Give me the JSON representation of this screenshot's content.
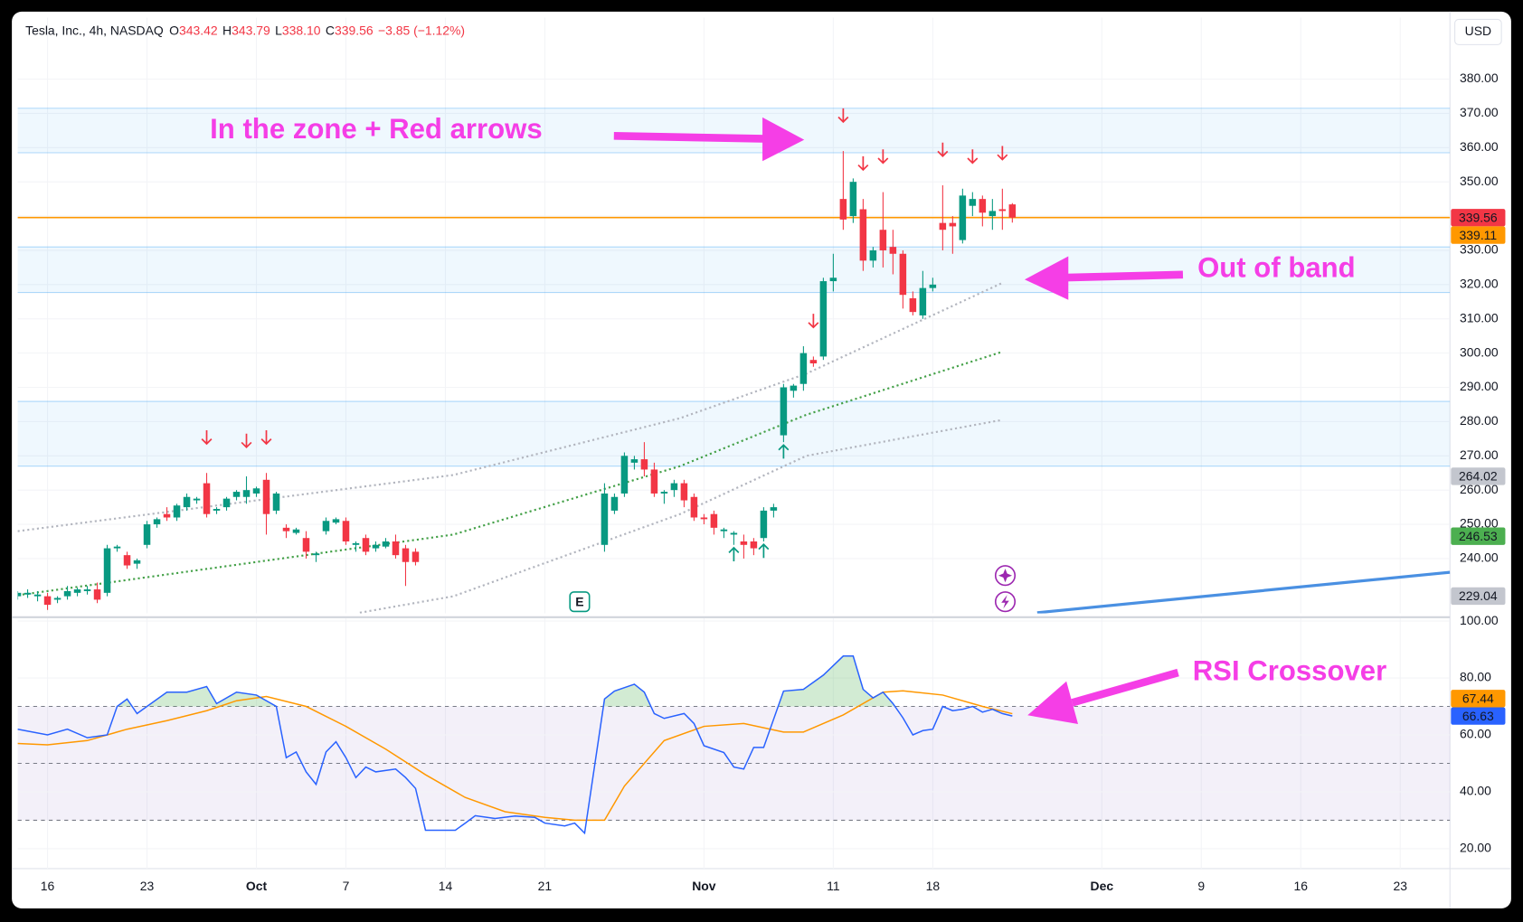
{
  "chart_data": {
    "type": "candlestick",
    "title": "Tesla, Inc., 4h, NASDAQ",
    "ohlc": [
      {
        "label": "O",
        "value": "343.42"
      },
      {
        "label": "H",
        "value": "343.79"
      },
      {
        "label": "L",
        "value": "338.10"
      },
      {
        "label": "C",
        "value": "339.56"
      }
    ],
    "change": "−3.85 (−1.12%)",
    "currency": "USD",
    "up_color": "#089981",
    "down_color": "#f23645",
    "x": [
      -3,
      -2,
      -1,
      0,
      1,
      2,
      3,
      4,
      5,
      6,
      7,
      8,
      9,
      10,
      11,
      12,
      13,
      14,
      15,
      16,
      17,
      18,
      19,
      20,
      21,
      22,
      23,
      24,
      25,
      26,
      27,
      28,
      29,
      30,
      31,
      32,
      33,
      34,
      35,
      36,
      37,
      56,
      57,
      58,
      59,
      60,
      61,
      62,
      63,
      64,
      65,
      66,
      67,
      68,
      69,
      70,
      71,
      72,
      73,
      74,
      75,
      76,
      77,
      78,
      79,
      80,
      81,
      82,
      83,
      84,
      85,
      86,
      87,
      88,
      89,
      90,
      91,
      92,
      93,
      94,
      95,
      96,
      97
    ],
    "open": [
      229,
      229.5,
      229,
      229,
      228,
      229,
      230,
      230.5,
      231,
      230,
      243,
      241,
      238.5,
      244,
      250,
      253,
      252,
      255,
      257,
      262,
      254,
      255,
      258,
      258,
      259,
      263,
      254,
      249,
      247.5,
      246,
      241,
      248,
      250.5,
      251,
      244,
      246,
      243,
      243.5,
      245,
      243,
      242,
      244,
      254,
      259,
      268,
      269,
      266,
      259,
      260,
      262,
      258,
      252,
      253,
      248,
      247,
      245,
      245,
      246,
      254,
      276,
      289,
      291,
      298,
      299,
      321,
      345,
      340,
      342,
      327,
      336,
      331,
      329,
      316,
      311,
      319,
      338,
      338,
      333,
      343,
      345,
      340,
      342,
      343.42
    ],
    "high": [
      230.5,
      231,
      230.5,
      230,
      229,
      232,
      231.5,
      232,
      233,
      244,
      244,
      242,
      240,
      251,
      252,
      255,
      256,
      259,
      258,
      265,
      255,
      258,
      260,
      264,
      261,
      265,
      259.5,
      250,
      249,
      248,
      242,
      252,
      252,
      252,
      245,
      247,
      245,
      246,
      247,
      244,
      243,
      262,
      259,
      271,
      270,
      274,
      268,
      260,
      263,
      263,
      259,
      253,
      254,
      249,
      248,
      247,
      246,
      255,
      256,
      291,
      291,
      302,
      299,
      322,
      329,
      359,
      351,
      345,
      331,
      347,
      336,
      330,
      318,
      324,
      322,
      349,
      340,
      348,
      347,
      346,
      345,
      348,
      343.79
    ],
    "low": [
      228,
      228.5,
      227.5,
      225,
      227,
      228,
      229,
      229.5,
      227,
      229,
      242,
      237,
      237,
      243,
      249,
      251,
      251,
      254,
      256,
      252,
      253,
      254,
      257,
      256,
      258,
      247,
      253,
      246,
      247,
      240,
      239,
      247,
      250,
      244,
      242,
      241,
      242,
      243,
      240,
      232,
      238,
      242,
      253,
      258,
      266,
      264,
      258,
      256,
      258,
      255,
      251,
      250,
      247,
      246,
      244,
      240,
      241,
      245,
      252,
      274,
      287,
      289,
      296,
      298,
      318,
      336,
      338,
      324,
      325,
      325,
      323,
      313,
      311,
      310,
      318,
      330,
      329,
      332,
      340,
      337,
      336,
      336,
      338.1
    ],
    "close": [
      230,
      230,
      229.5,
      226.5,
      228.5,
      230.5,
      231,
      231,
      228,
      243,
      243.5,
      238,
      239.5,
      250,
      251.5,
      252,
      255.5,
      258,
      257.5,
      253,
      254.5,
      257.5,
      259.5,
      260,
      260.5,
      253,
      259,
      248,
      248.5,
      242,
      241.5,
      251,
      251.5,
      245,
      244.5,
      242,
      244,
      245,
      241,
      239,
      239,
      259,
      258,
      270,
      269,
      266,
      259,
      259.5,
      262,
      257,
      252,
      251.5,
      249,
      248.5,
      247.5,
      244,
      243,
      254,
      255,
      290,
      290.5,
      300,
      297,
      321,
      322,
      339,
      350,
      327,
      330,
      330,
      329,
      317,
      312,
      319,
      320,
      336,
      337,
      346,
      345,
      341,
      341.5,
      341.5,
      339.56
    ],
    "xlim": [
      -3,
      141
    ],
    "xticks": [
      {
        "value": 0,
        "label": "16"
      },
      {
        "value": 10,
        "label": "23"
      },
      {
        "value": 21,
        "label": "Oct"
      },
      {
        "value": 30,
        "label": "7"
      },
      {
        "value": 40,
        "label": "14"
      },
      {
        "value": 50,
        "label": "21"
      },
      {
        "value": 66,
        "label": "Nov"
      },
      {
        "value": 79,
        "label": "11"
      },
      {
        "value": 89,
        "label": "18"
      },
      {
        "value": 106,
        "label": "Dec"
      },
      {
        "value": 116,
        "label": "9"
      },
      {
        "value": 126,
        "label": "16"
      },
      {
        "value": 136,
        "label": "23"
      }
    ],
    "ylim": [
      224,
      398
    ],
    "yticks": [
      {
        "value": 240,
        "label": "240.00"
      },
      {
        "value": 250,
        "label": "250.00"
      },
      {
        "value": 260,
        "label": "260.00"
      },
      {
        "value": 270,
        "label": "270.00"
      },
      {
        "value": 280,
        "label": "280.00"
      },
      {
        "value": 290,
        "label": "290.00"
      },
      {
        "value": 300,
        "label": "300.00"
      },
      {
        "value": 310,
        "label": "310.00"
      },
      {
        "value": 320,
        "label": "320.00"
      },
      {
        "value": 330,
        "label": "330.00"
      },
      {
        "value": 340,
        "label": "340.00"
      },
      {
        "value": 350,
        "label": "350.00"
      },
      {
        "value": 360,
        "label": "360.00"
      },
      {
        "value": 370,
        "label": "370.00"
      },
      {
        "value": 380,
        "label": "380.00"
      }
    ],
    "grid": true,
    "zones": [
      {
        "low": 358.5,
        "high": 371.5
      },
      {
        "low": 317.7,
        "high": 331
      },
      {
        "low": 267,
        "high": 285.9
      }
    ],
    "zone_color": "#2196f3",
    "overlays": [
      {
        "color": "#b2b5be",
        "style": "dotted",
        "x": [
          -3,
          40.8,
          63.6,
          76.3,
          96
        ],
        "values": [
          248,
          264.4,
          281,
          294,
          320.5
        ]
      },
      {
        "color": "#43a047",
        "style": "dotted",
        "x": [
          -3,
          40.8,
          63.6,
          76.3,
          96
        ],
        "values": [
          229.3,
          247,
          267,
          282,
          300.4
        ]
      },
      {
        "color": "#b2b5be",
        "style": "dotted",
        "x": [
          31.4,
          40.8,
          63.6,
          76.3,
          96
        ],
        "values": [
          224.2,
          229,
          253,
          270,
          280.5
        ]
      },
      {
        "color": "#4a90e2",
        "style": "solid",
        "x": [
          99.5,
          141
        ],
        "values": [
          224.2,
          236
        ]
      }
    ],
    "price_line": {
      "value": 339.56,
      "color": "#ff9800"
    },
    "price_labels": [
      {
        "value": 339.56,
        "label": "339.56",
        "color": "#f23645",
        "text_color": "#ffffff"
      },
      {
        "value": 339.11,
        "label": "339.11",
        "color": "#ff9800",
        "text_color": "#ffffff"
      },
      {
        "value": 264.02,
        "label": "264.02",
        "color": "#c3c6ce",
        "text_color": "#131722"
      },
      {
        "value": 246.53,
        "label": "246.53",
        "color": "#4caf50",
        "text_color": "#ffffff"
      },
      {
        "value": 229.04,
        "label": "229.04",
        "color": "#c3c6ce",
        "text_color": "#131722"
      }
    ],
    "sell_signals": [
      16,
      20,
      22,
      77,
      80,
      82,
      84,
      90,
      93,
      96
    ],
    "buy_signals": [
      69,
      72,
      74
    ],
    "earnings": {
      "x": 53.5,
      "label": "E"
    },
    "annotations": [
      "In the zone + Red arrows",
      "Out of band",
      "RSI Crossover"
    ],
    "rsi": {
      "ylim": [
        13,
        101
      ],
      "yticks": [
        {
          "value": 100,
          "label": "100.00"
        },
        {
          "value": 80,
          "label": "80.00"
        },
        {
          "value": 60,
          "label": "60.00"
        },
        {
          "value": 40,
          "label": "40.00"
        },
        {
          "value": 20,
          "label": "20.00"
        }
      ],
      "band": [
        30,
        70
      ],
      "levels": [
        30,
        50,
        70
      ],
      "series": [
        {
          "color": "#2962ff",
          "value_label": "66.63",
          "x": [
            -3,
            0,
            2,
            4,
            6,
            7,
            8,
            9,
            10,
            12,
            14,
            16,
            17,
            19,
            21,
            23,
            24,
            25,
            26,
            27,
            28,
            29,
            30,
            31,
            32,
            33,
            35,
            36,
            37,
            38,
            41,
            42,
            43,
            45,
            47,
            49,
            50,
            52,
            53,
            54,
            56,
            57,
            59,
            60,
            61,
            62,
            64,
            65,
            66,
            68,
            69,
            70,
            71,
            72,
            74,
            76,
            78,
            80,
            81,
            82,
            83,
            84,
            85,
            86,
            87,
            88,
            89,
            90,
            91,
            92,
            93,
            94,
            95,
            96,
            97
          ],
          "values": [
            62,
            60,
            62,
            59,
            60,
            70,
            72.6,
            67.5,
            70,
            75,
            75,
            77,
            71,
            75,
            74,
            70,
            52,
            54,
            47,
            42.6,
            54,
            57.6,
            52,
            45,
            48.7,
            47,
            48,
            45,
            41.2,
            26.5,
            26.5,
            29,
            31.6,
            30.6,
            31.5,
            31,
            29,
            28,
            29,
            25.5,
            72.6,
            75.4,
            77.8,
            75,
            67.5,
            65.8,
            67.5,
            64,
            56.2,
            53.8,
            48.7,
            48,
            55.6,
            55.6,
            75.4,
            76,
            81,
            87.7,
            87.7,
            76,
            73,
            75,
            71,
            66,
            60,
            61.5,
            62,
            70,
            68.5,
            69,
            70,
            68,
            69,
            67.5,
            66.63
          ]
        },
        {
          "color": "#ff9800",
          "value_label": "67.44",
          "x": [
            -3,
            0,
            4,
            8,
            12,
            16,
            19,
            22,
            26,
            30,
            34,
            38,
            42,
            46,
            50,
            53,
            56,
            58,
            62,
            66,
            70,
            74,
            76,
            80,
            84,
            86,
            90,
            94,
            97
          ],
          "values": [
            57,
            56.5,
            58,
            62,
            65,
            68.5,
            72,
            73.5,
            70,
            63,
            55,
            46,
            38,
            33,
            31,
            30,
            30,
            42,
            58,
            63,
            64,
            61,
            61,
            67,
            75,
            75.5,
            74,
            70,
            67.44
          ]
        }
      ]
    }
  }
}
